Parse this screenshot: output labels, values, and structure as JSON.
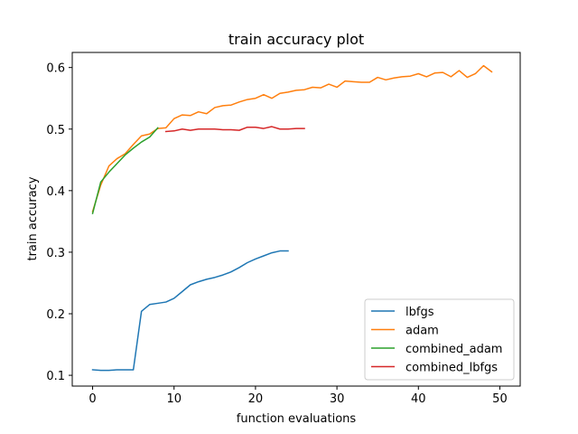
{
  "chart_data": {
    "type": "line",
    "title": "train accuracy plot",
    "xlabel": "function evaluations",
    "ylabel": "train accuracy",
    "xlim": [
      -2.5,
      52.5
    ],
    "ylim": [
      0.0825,
      0.6245
    ],
    "xticks": [
      0,
      10,
      20,
      30,
      40,
      50
    ],
    "yticks": [
      0.1,
      0.2,
      0.3,
      0.4,
      0.5,
      0.6
    ],
    "xtick_labels": [
      "0",
      "10",
      "20",
      "30",
      "40",
      "50"
    ],
    "ytick_labels": [
      "0.1",
      "0.2",
      "0.3",
      "0.4",
      "0.5",
      "0.6"
    ],
    "grid": false,
    "legend_position": "lower-right",
    "series": [
      {
        "name": "lbfgs",
        "color": "#1f77b4",
        "x": [
          0,
          1,
          2,
          3,
          4,
          5,
          6,
          7,
          8,
          9,
          10,
          11,
          12,
          13,
          14,
          15,
          16,
          17,
          18,
          19,
          20,
          21,
          22,
          23,
          24
        ],
        "y": [
          0.109,
          0.108,
          0.108,
          0.109,
          0.109,
          0.109,
          0.204,
          0.215,
          0.217,
          0.219,
          0.225,
          0.236,
          0.247,
          0.252,
          0.256,
          0.259,
          0.263,
          0.268,
          0.275,
          0.283,
          0.289,
          0.294,
          0.299,
          0.302,
          0.302
        ]
      },
      {
        "name": "adam",
        "color": "#ff7f0e",
        "x": [
          0,
          1,
          2,
          3,
          4,
          5,
          6,
          7,
          8,
          9,
          10,
          11,
          12,
          13,
          14,
          15,
          16,
          17,
          18,
          19,
          20,
          21,
          22,
          23,
          24,
          25,
          26,
          27,
          28,
          29,
          30,
          31,
          32,
          33,
          34,
          35,
          36,
          37,
          38,
          39,
          40,
          41,
          42,
          43,
          44,
          45,
          46,
          47,
          48,
          49
        ],
        "y": [
          0.366,
          0.409,
          0.44,
          0.452,
          0.46,
          0.475,
          0.489,
          0.492,
          0.501,
          0.502,
          0.517,
          0.523,
          0.522,
          0.528,
          0.525,
          0.535,
          0.538,
          0.539,
          0.544,
          0.548,
          0.55,
          0.556,
          0.55,
          0.558,
          0.56,
          0.563,
          0.564,
          0.568,
          0.567,
          0.573,
          0.568,
          0.578,
          0.577,
          0.576,
          0.576,
          0.584,
          0.58,
          0.583,
          0.585,
          0.586,
          0.59,
          0.585,
          0.591,
          0.592,
          0.585,
          0.595,
          0.584,
          0.59,
          0.603,
          0.593
        ]
      },
      {
        "name": "combined_adam",
        "color": "#2ca02c",
        "x": [
          0,
          1,
          2,
          3,
          4,
          5,
          6,
          7,
          8
        ],
        "y": [
          0.363,
          0.414,
          0.43,
          0.444,
          0.458,
          0.469,
          0.479,
          0.487,
          0.502
        ]
      },
      {
        "name": "combined_lbfgs",
        "color": "#d62728",
        "x": [
          9,
          10,
          11,
          12,
          13,
          14,
          15,
          16,
          17,
          18,
          19,
          20,
          21,
          22,
          23,
          24,
          25,
          26
        ],
        "y": [
          0.496,
          0.497,
          0.5,
          0.498,
          0.5,
          0.5,
          0.5,
          0.499,
          0.499,
          0.498,
          0.503,
          0.503,
          0.501,
          0.504,
          0.5,
          0.5,
          0.501,
          0.501
        ]
      }
    ]
  }
}
